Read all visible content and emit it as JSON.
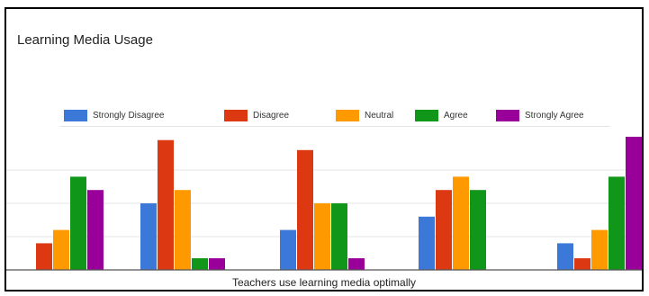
{
  "chart_data": {
    "type": "bar",
    "title": "Learning Media Usage",
    "xlabel": "Teachers use learning media optimally",
    "ylabel": "",
    "ylim": [
      0,
      8
    ],
    "grid": true,
    "legend_position": "top",
    "categories": [
      "",
      "",
      "",
      "",
      ""
    ],
    "series": [
      {
        "name": "Strongly Disagree",
        "color": "#3c78d8",
        "values": [
          0,
          4,
          2.4,
          3.2,
          1.6
        ]
      },
      {
        "name": "Disagree",
        "color": "#dc3912",
        "values": [
          1.6,
          7.8,
          7.2,
          4.8,
          0.7
        ]
      },
      {
        "name": "Neutral",
        "color": "#ff9900",
        "values": [
          2.4,
          4.8,
          4,
          5.6,
          2.4
        ]
      },
      {
        "name": "Agree",
        "color": "#109618",
        "values": [
          5.6,
          0.7,
          4,
          4.8,
          5.6
        ]
      },
      {
        "name": "Strongly Agree",
        "color": "#990099",
        "values": [
          4.8,
          0.7,
          0.7,
          0,
          8
        ]
      }
    ]
  }
}
